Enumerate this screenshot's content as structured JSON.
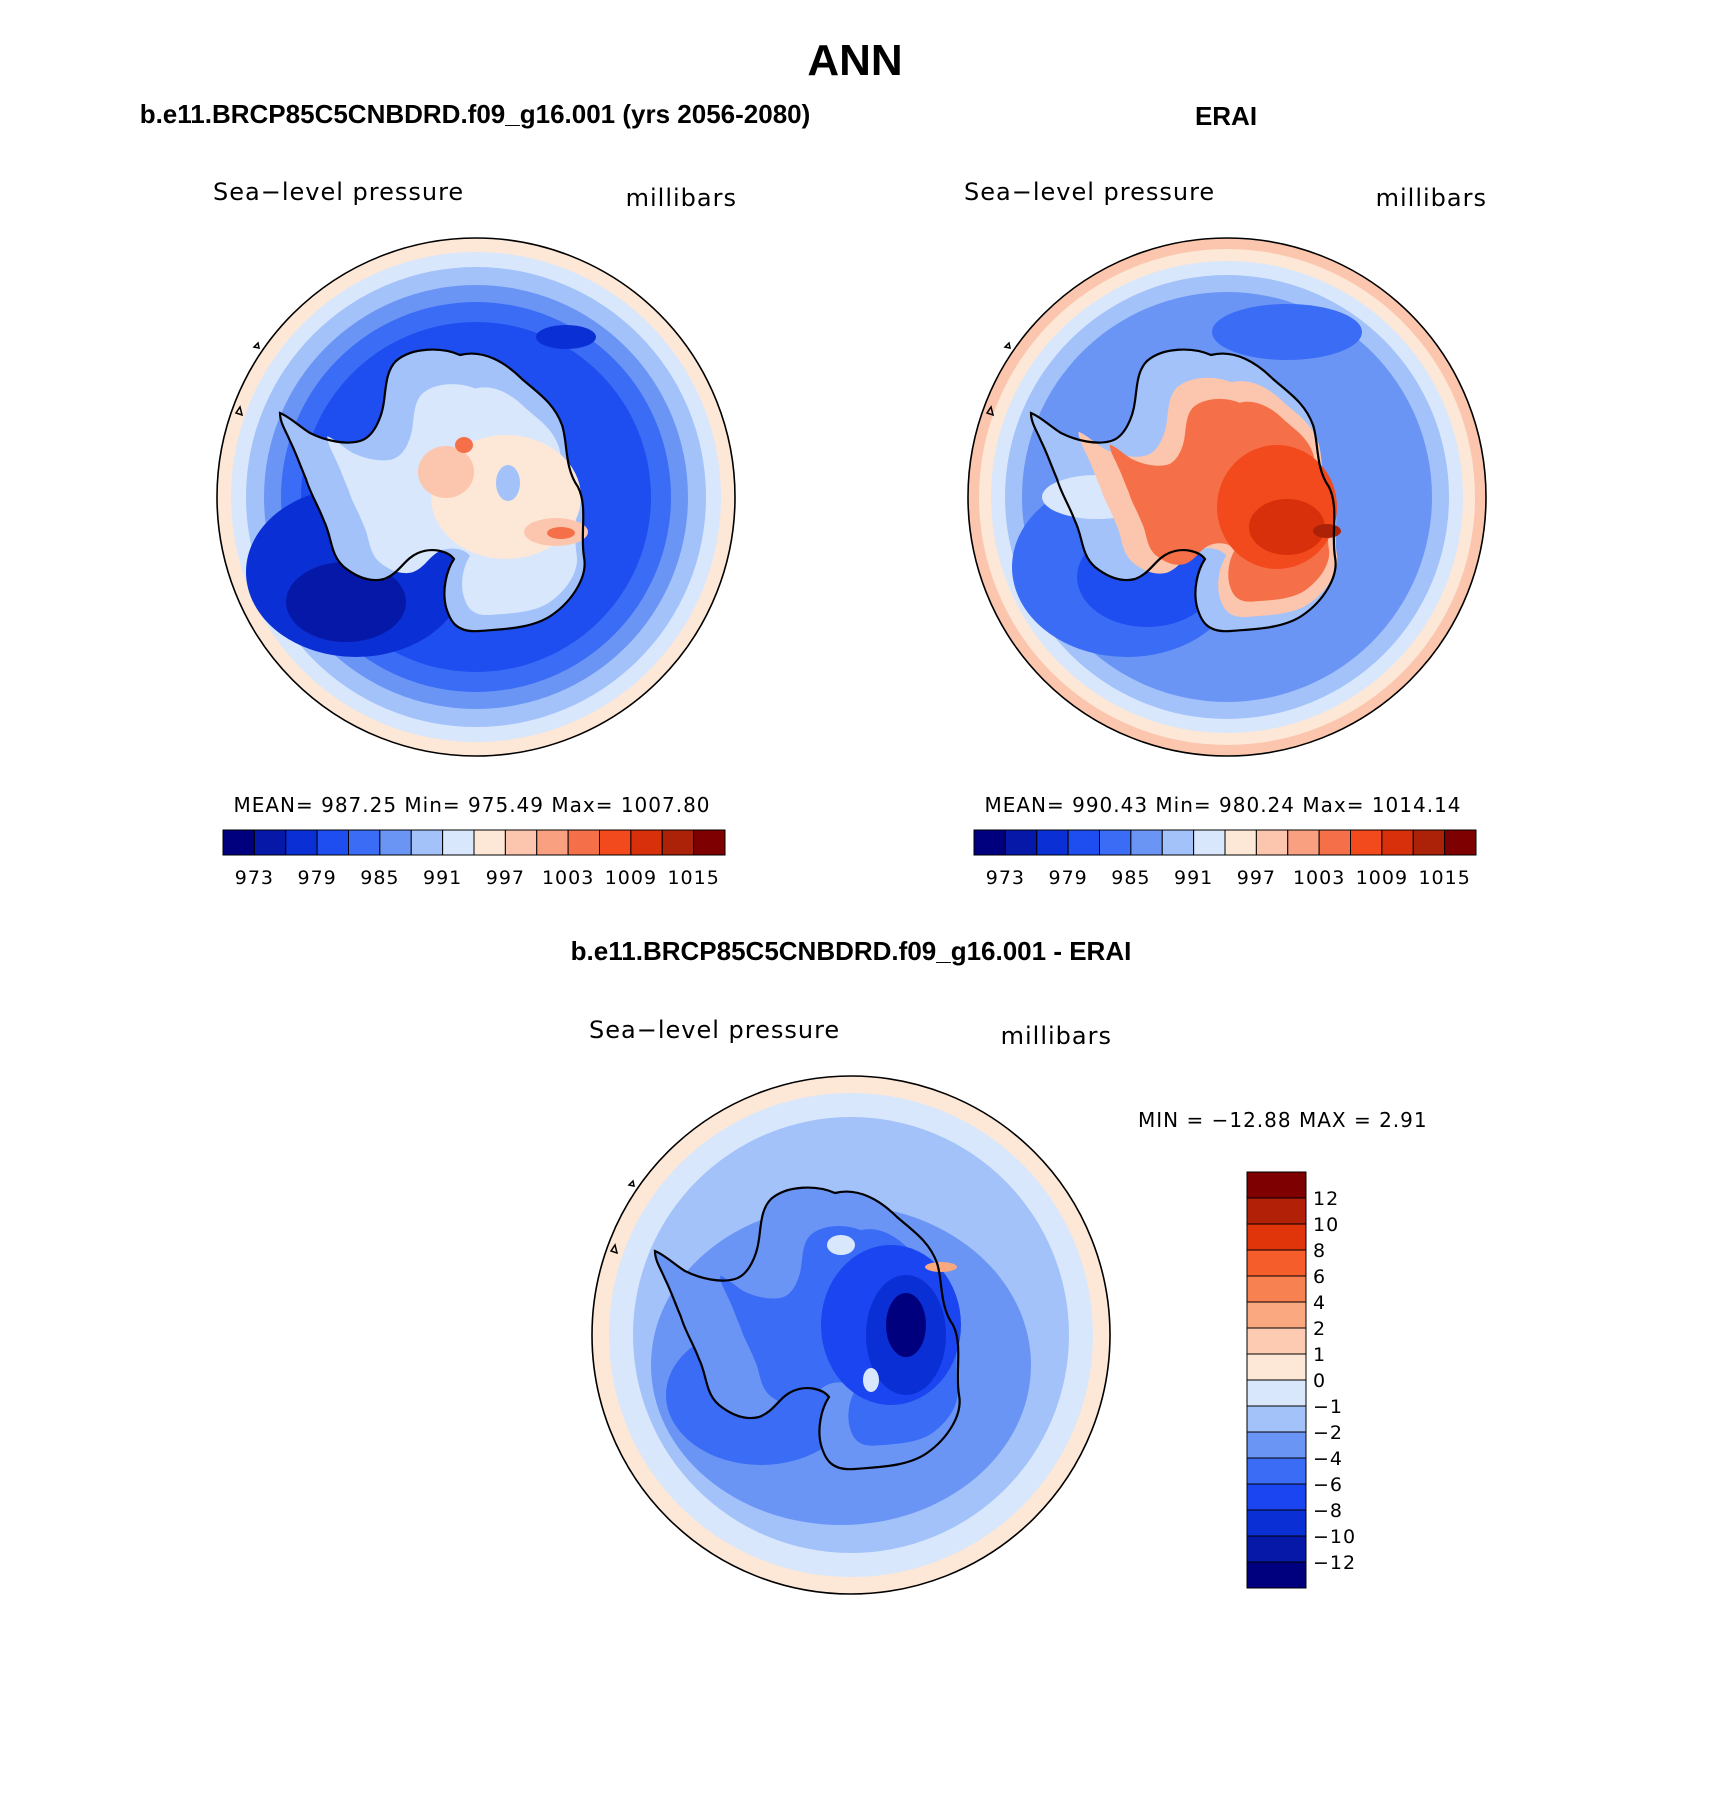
{
  "title": "ANN",
  "panels": [
    {
      "id": "model",
      "title": "b.e11.BRCP85C5CNBDRD.f09_g16.001 (yrs 2056-2080)",
      "left_label": "Sea−level pressure",
      "right_label": "millibars",
      "stats": "MEAN=  987.25    Min=  975.49    Max=  1007.80",
      "colorbar_ticks": [
        "973",
        "979",
        "985",
        "991",
        "997",
        "1003",
        "1009",
        "1015"
      ],
      "field_levels": [
        0.22,
        0.28,
        0.36,
        0.45,
        0.55,
        0.62,
        0.7
      ]
    },
    {
      "id": "obs",
      "title": "ERAI",
      "left_label": "Sea−level pressure",
      "right_label": "millibars",
      "stats": "MEAN=  990.43    Min=  980.24    Max=  1014.14",
      "colorbar_ticks": [
        "973",
        "979",
        "985",
        "991",
        "997",
        "1003",
        "1009",
        "1015"
      ],
      "field_levels": [
        0.3,
        0.36,
        0.45,
        0.55,
        0.7,
        0.85,
        0.98
      ]
    },
    {
      "id": "diff",
      "title": "b.e11.BRCP85C5CNBDRD.f09_g16.001 - ERAI",
      "left_label": "Sea−level pressure",
      "right_label": "millibars",
      "stats": "MIN  =  −12.88  MAX  =      2.91",
      "colorbar_ticks": [
        "12",
        "10",
        "8",
        "6",
        "4",
        "2",
        "1",
        "0",
        "−1",
        "−2",
        "−4",
        "−6",
        "−8",
        "−10",
        "−12"
      ],
      "field_levels": [
        0.5,
        0.44,
        0.38,
        0.3,
        0.22,
        0.1,
        0.05
      ]
    }
  ],
  "colors": {
    "abs_scale": [
      "#00007f",
      "#0618a8",
      "#0a2fd4",
      "#1f4ef0",
      "#3a6cf5",
      "#6a95f5",
      "#a3c2fa",
      "#d8e7fc",
      "#fde7d6",
      "#fbc6ad",
      "#f8a07f",
      "#f57048",
      "#f24a1c",
      "#d8300a",
      "#ab2208",
      "#7f0000"
    ],
    "diff_scale": [
      "#7f0000",
      "#b32008",
      "#e0350a",
      "#f55d2a",
      "#f78150",
      "#f9a880",
      "#fdcbb2",
      "#fde7d6",
      "#d8e7fc",
      "#a3c2fa",
      "#6a95f5",
      "#3a6cf5",
      "#1a45f0",
      "#0a2fd4",
      "#0618a8",
      "#00007f"
    ],
    "coast": "#000000"
  }
}
